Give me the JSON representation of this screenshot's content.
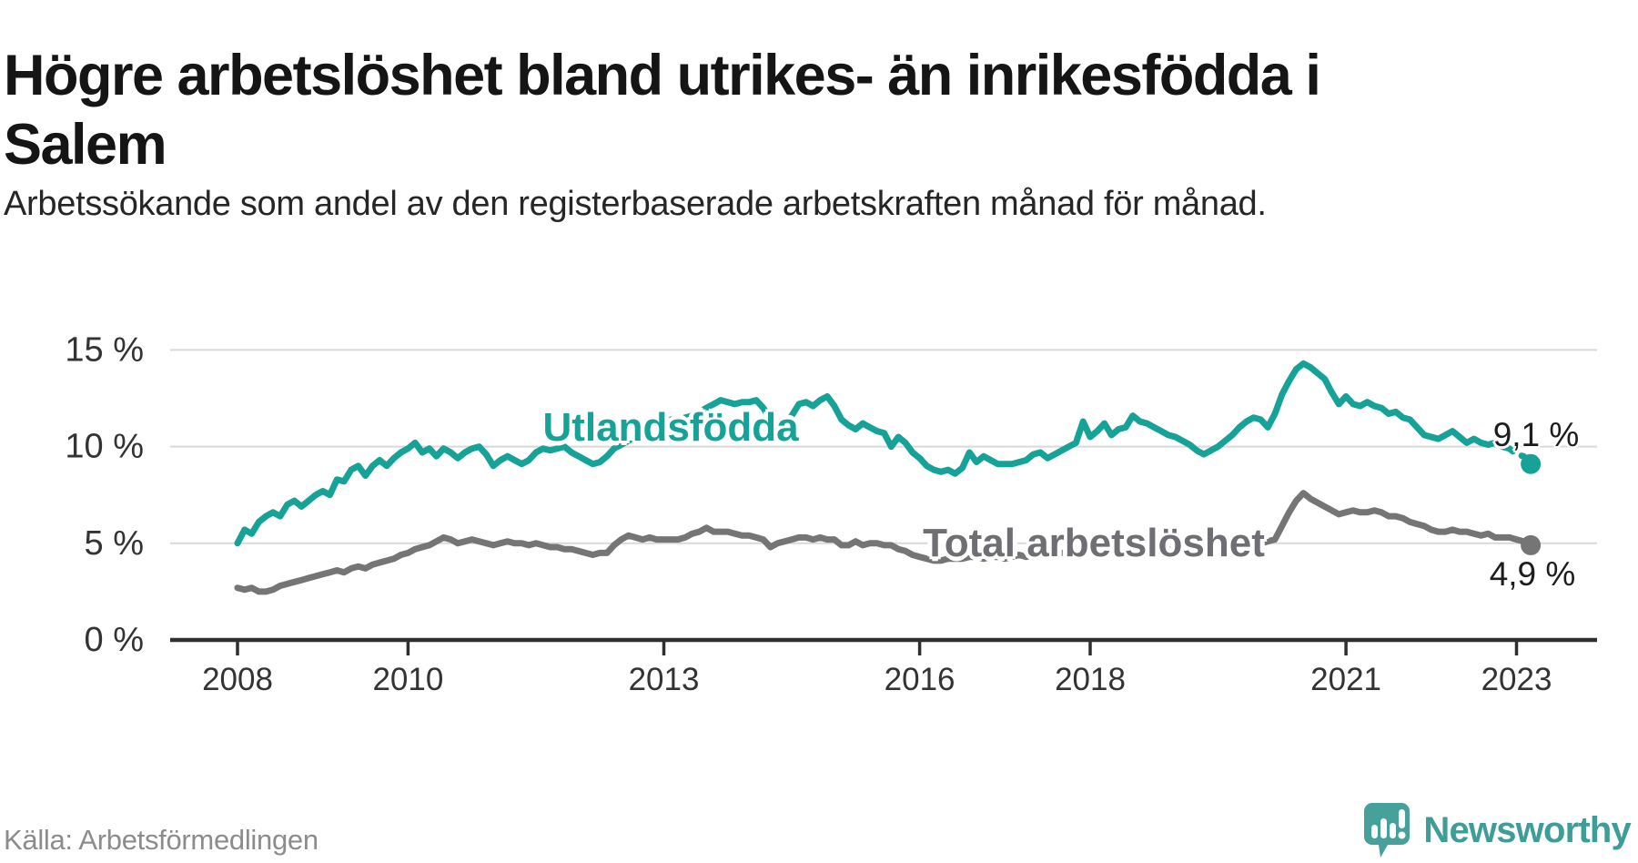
{
  "header": {
    "title": "Högre arbetslöshet bland utrikes- än inrikesfödda i Salem",
    "subtitle": "Arbetssökande som andel av den registerbaserade arbetskraften månad för månad."
  },
  "footer": {
    "source": "Källa: Arbetsförmedlingen",
    "brand_name": "Newsworthy",
    "logo_icon": "bar-chart-speech-bubble-icon"
  },
  "colors": {
    "series_foreign_born": "#16a296",
    "series_total": "#757575",
    "gridline": "#d9d9d9",
    "axis": "#2f2f2f",
    "tick_label": "#333333",
    "halo": "#ffffff"
  },
  "chart_data": {
    "type": "line",
    "title": "Högre arbetslöshet bland utrikes- än inrikesfödda i Salem",
    "xlabel": "",
    "ylabel": "Arbetssökande som andel av den registerbaserade arbetskraften",
    "unit": "%",
    "frequency": "monthly",
    "x_start": "2008-01",
    "x_end": "2023-03",
    "ylim": [
      0,
      16
    ],
    "grid": "horizontal",
    "legend_position": "inline-labels",
    "y_ticks": [
      {
        "value": 0,
        "label": "0 %"
      },
      {
        "value": 5,
        "label": "5 %"
      },
      {
        "value": 10,
        "label": "10 %"
      },
      {
        "value": 15,
        "label": "15 %"
      }
    ],
    "x_ticks": [
      {
        "year": 2008,
        "label": "2008"
      },
      {
        "year": 2010,
        "label": "2010"
      },
      {
        "year": 2013,
        "label": "2013"
      },
      {
        "year": 2016,
        "label": "2016"
      },
      {
        "year": 2018,
        "label": "2018"
      },
      {
        "year": 2021,
        "label": "2021"
      },
      {
        "year": 2023,
        "label": "2023"
      }
    ],
    "series": [
      {
        "name": "Utlandsfödda",
        "color": "#16a296",
        "end_label": "9,1 %",
        "end_value": 9.1,
        "dashed_tail_points": 5,
        "values": [
          5.0,
          5.7,
          5.5,
          6.1,
          6.4,
          6.6,
          6.4,
          7.0,
          7.2,
          6.9,
          7.2,
          7.5,
          7.7,
          7.5,
          8.3,
          8.2,
          8.8,
          9.0,
          8.5,
          9.0,
          9.3,
          9.0,
          9.4,
          9.7,
          9.9,
          10.2,
          9.7,
          9.9,
          9.5,
          9.9,
          9.7,
          9.4,
          9.7,
          9.9,
          10.0,
          9.6,
          9.0,
          9.3,
          9.5,
          9.3,
          9.1,
          9.3,
          9.7,
          9.9,
          9.8,
          9.9,
          10.0,
          9.7,
          9.5,
          9.3,
          9.1,
          9.2,
          9.5,
          9.9,
          10.1,
          10.3,
          10.5,
          10.7,
          10.9,
          11.0,
          11.2,
          11.4,
          11.3,
          11.5,
          11.6,
          11.8,
          12.0,
          12.2,
          12.4,
          12.3,
          12.2,
          12.3,
          12.3,
          12.4,
          12.0,
          11.4,
          11.0,
          11.2,
          11.6,
          12.2,
          12.3,
          12.1,
          12.4,
          12.6,
          12.1,
          11.4,
          11.1,
          10.9,
          11.2,
          11.0,
          10.8,
          10.7,
          10.0,
          10.5,
          10.2,
          9.7,
          9.4,
          9.0,
          8.8,
          8.7,
          8.8,
          8.6,
          8.9,
          9.7,
          9.2,
          9.5,
          9.3,
          9.1,
          9.1,
          9.1,
          9.2,
          9.3,
          9.6,
          9.7,
          9.4,
          9.6,
          9.8,
          10.0,
          10.2,
          11.3,
          10.5,
          10.8,
          11.2,
          10.6,
          10.9,
          11.0,
          11.6,
          11.3,
          11.2,
          11.0,
          10.8,
          10.6,
          10.5,
          10.3,
          10.1,
          9.8,
          9.6,
          9.8,
          10.0,
          10.3,
          10.6,
          11.0,
          11.3,
          11.5,
          11.4,
          11.0,
          11.7,
          12.7,
          13.4,
          14.0,
          14.3,
          14.1,
          13.8,
          13.5,
          12.8,
          12.2,
          12.6,
          12.2,
          12.1,
          12.3,
          12.1,
          12.0,
          11.7,
          11.8,
          11.5,
          11.4,
          11.0,
          10.6,
          10.5,
          10.4,
          10.6,
          10.8,
          10.5,
          10.2,
          10.4,
          10.2,
          10.1,
          10.2,
          10.0,
          9.9,
          9.6,
          9.5,
          9.1
        ]
      },
      {
        "name": "Total arbetslöshet",
        "color": "#757575",
        "end_label": "4,9 %",
        "end_value": 4.9,
        "dashed_tail_points": 0,
        "values": [
          2.7,
          2.6,
          2.7,
          2.5,
          2.5,
          2.6,
          2.8,
          2.9,
          3.0,
          3.1,
          3.2,
          3.3,
          3.4,
          3.5,
          3.6,
          3.5,
          3.7,
          3.8,
          3.7,
          3.9,
          4.0,
          4.1,
          4.2,
          4.4,
          4.5,
          4.7,
          4.8,
          4.9,
          5.1,
          5.3,
          5.2,
          5.0,
          5.1,
          5.2,
          5.1,
          5.0,
          4.9,
          5.0,
          5.1,
          5.0,
          5.0,
          4.9,
          5.0,
          4.9,
          4.8,
          4.8,
          4.7,
          4.7,
          4.6,
          4.5,
          4.4,
          4.5,
          4.5,
          4.9,
          5.2,
          5.4,
          5.3,
          5.2,
          5.3,
          5.2,
          5.2,
          5.2,
          5.2,
          5.3,
          5.5,
          5.6,
          5.8,
          5.6,
          5.6,
          5.6,
          5.5,
          5.4,
          5.4,
          5.3,
          5.2,
          4.8,
          5.0,
          5.1,
          5.2,
          5.3,
          5.3,
          5.2,
          5.3,
          5.2,
          5.2,
          4.9,
          4.9,
          5.1,
          4.9,
          5.0,
          5.0,
          4.9,
          4.9,
          4.7,
          4.6,
          4.4,
          4.3,
          4.2,
          4.1,
          4.1,
          4.2,
          4.2,
          4.2,
          4.3,
          4.3,
          4.2,
          4.3,
          4.3,
          4.2,
          4.3,
          4.4,
          4.3,
          4.4,
          4.5,
          4.4,
          4.5,
          4.5,
          4.5,
          4.6,
          4.7,
          4.6,
          4.6,
          4.5,
          4.6,
          4.5,
          4.5,
          4.5,
          4.6,
          4.5,
          4.6,
          4.6,
          4.7,
          4.6,
          4.7,
          4.7,
          4.7,
          4.7,
          4.7,
          4.8,
          4.8,
          4.9,
          4.9,
          5.0,
          5.0,
          5.0,
          5.1,
          5.2,
          5.9,
          6.6,
          7.2,
          7.6,
          7.3,
          7.1,
          6.9,
          6.7,
          6.5,
          6.6,
          6.7,
          6.6,
          6.6,
          6.7,
          6.6,
          6.4,
          6.4,
          6.3,
          6.1,
          6.0,
          5.9,
          5.7,
          5.6,
          5.6,
          5.7,
          5.6,
          5.6,
          5.5,
          5.4,
          5.5,
          5.3,
          5.3,
          5.3,
          5.2,
          5.1,
          4.9
        ]
      }
    ]
  }
}
